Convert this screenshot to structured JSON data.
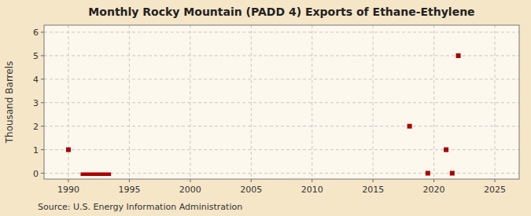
{
  "chart_data": {
    "type": "scatter",
    "title": "Monthly Rocky Mountain (PADD 4) Exports of Ethane-Ethylene",
    "y_label": "Thousand Barrels",
    "source": "Source: U.S. Energy Information Administration",
    "grid": true,
    "xlim": [
      1988.0,
      2027.0
    ],
    "ylim": [
      -0.25,
      6.3
    ],
    "xticks": [
      1990,
      1995,
      2000,
      2005,
      2010,
      2015,
      2020,
      2025
    ],
    "yticks": [
      0,
      1,
      2,
      3,
      4,
      5,
      6
    ],
    "series": [
      {
        "type": "scatter",
        "marker": "square",
        "color": "#aa0000",
        "x": [
          1990.0,
          2018.0,
          2021.0,
          2022.0
        ],
        "values": [
          1.0,
          2.0,
          1.0,
          5.0
        ]
      },
      {
        "type": "scatter",
        "marker": "square",
        "color": "#aa0000",
        "x": [
          2019.5,
          2021.5
        ],
        "values": [
          0.0,
          0.0
        ]
      },
      {
        "type": "line",
        "line_style": "solid",
        "color": "#aa0000",
        "x": [
          1991.0,
          1993.5
        ],
        "values": [
          -0.04,
          -0.04
        ]
      }
    ]
  }
}
